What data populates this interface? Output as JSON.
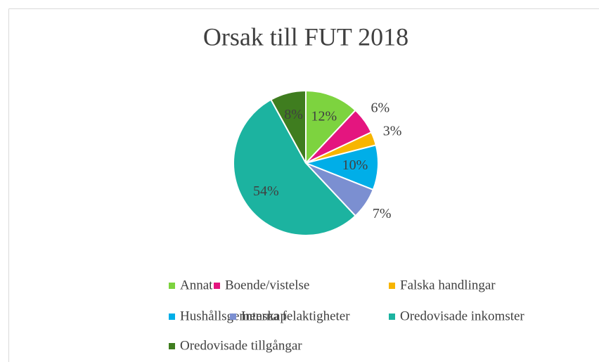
{
  "chart_data": {
    "type": "pie",
    "title": "Orsak till FUT 2018",
    "categories": [
      "Annat",
      "Boende/vistelse",
      "Falska handlingar",
      "Hushållsgemenskap",
      "Interna felaktigheter",
      "Oredovisade inkomster",
      "Oredovisade tillgångar"
    ],
    "values": [
      12,
      6,
      3,
      10,
      7,
      54,
      8
    ],
    "value_labels": [
      "12%",
      "6%",
      "3%",
      "10%",
      "7%",
      "54%",
      "8%"
    ],
    "colors": [
      "#7dd33f",
      "#e4157f",
      "#f7b500",
      "#00aee8",
      "#7b8fd1",
      "#1cb3a0",
      "#3f7d1f"
    ],
    "legend": "bottom"
  }
}
